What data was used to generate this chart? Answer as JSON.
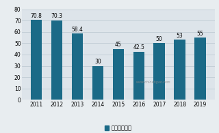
{
  "years": [
    "2011",
    "2012",
    "2013",
    "2014",
    "2015",
    "2016",
    "2017",
    "2018",
    "2019"
  ],
  "values": [
    70.8,
    70.3,
    58.4,
    30,
    45,
    42.5,
    50,
    53,
    55
  ],
  "bar_color": "#1b6a87",
  "ylim": [
    0,
    80
  ],
  "yticks": [
    0,
    10,
    20,
    30,
    40,
    50,
    60,
    70,
    80
  ],
  "legend_label": "产量（万吨）",
  "bg_color": "#e8edf0",
  "plot_bg_color": "#dde4ea",
  "grid_color": "#c0ccd4",
  "axis_fontsize": 5.5,
  "value_fontsize": 5.5,
  "legend_fontsize": 6.0,
  "watermark": "www.chinabgao.com"
}
